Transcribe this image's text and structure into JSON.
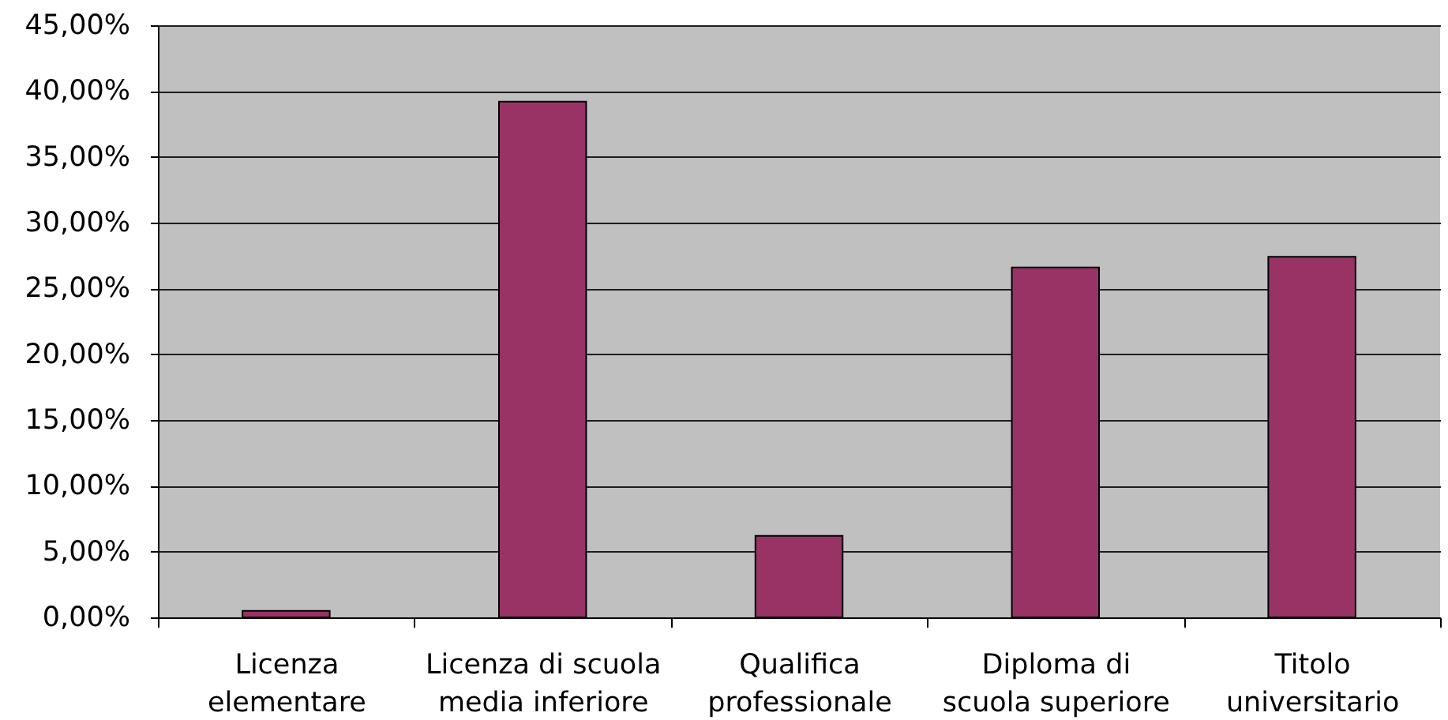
{
  "chart_data": {
    "type": "bar",
    "categories": [
      "Licenza elementare",
      "Licenza di scuola media inferiore",
      "Qualifica professionale",
      "Diploma di scuola superiore",
      "Titolo universitario"
    ],
    "values": [
      0.5,
      39.2,
      6.2,
      26.6,
      27.4
    ],
    "color": "#993366",
    "ylim": [
      0,
      45
    ],
    "yticks": [
      {
        "value": 0,
        "label": "0,00%"
      },
      {
        "value": 5,
        "label": "5,00%"
      },
      {
        "value": 10,
        "label": "10,00%"
      },
      {
        "value": 15,
        "label": "15,00%"
      },
      {
        "value": 20,
        "label": "20,00%"
      },
      {
        "value": 25,
        "label": "25,00%"
      },
      {
        "value": 30,
        "label": "30,00%"
      },
      {
        "value": 35,
        "label": "35,00%"
      },
      {
        "value": 40,
        "label": "40,00%"
      },
      {
        "value": 45,
        "label": "45,00%"
      }
    ],
    "grid": "y"
  }
}
